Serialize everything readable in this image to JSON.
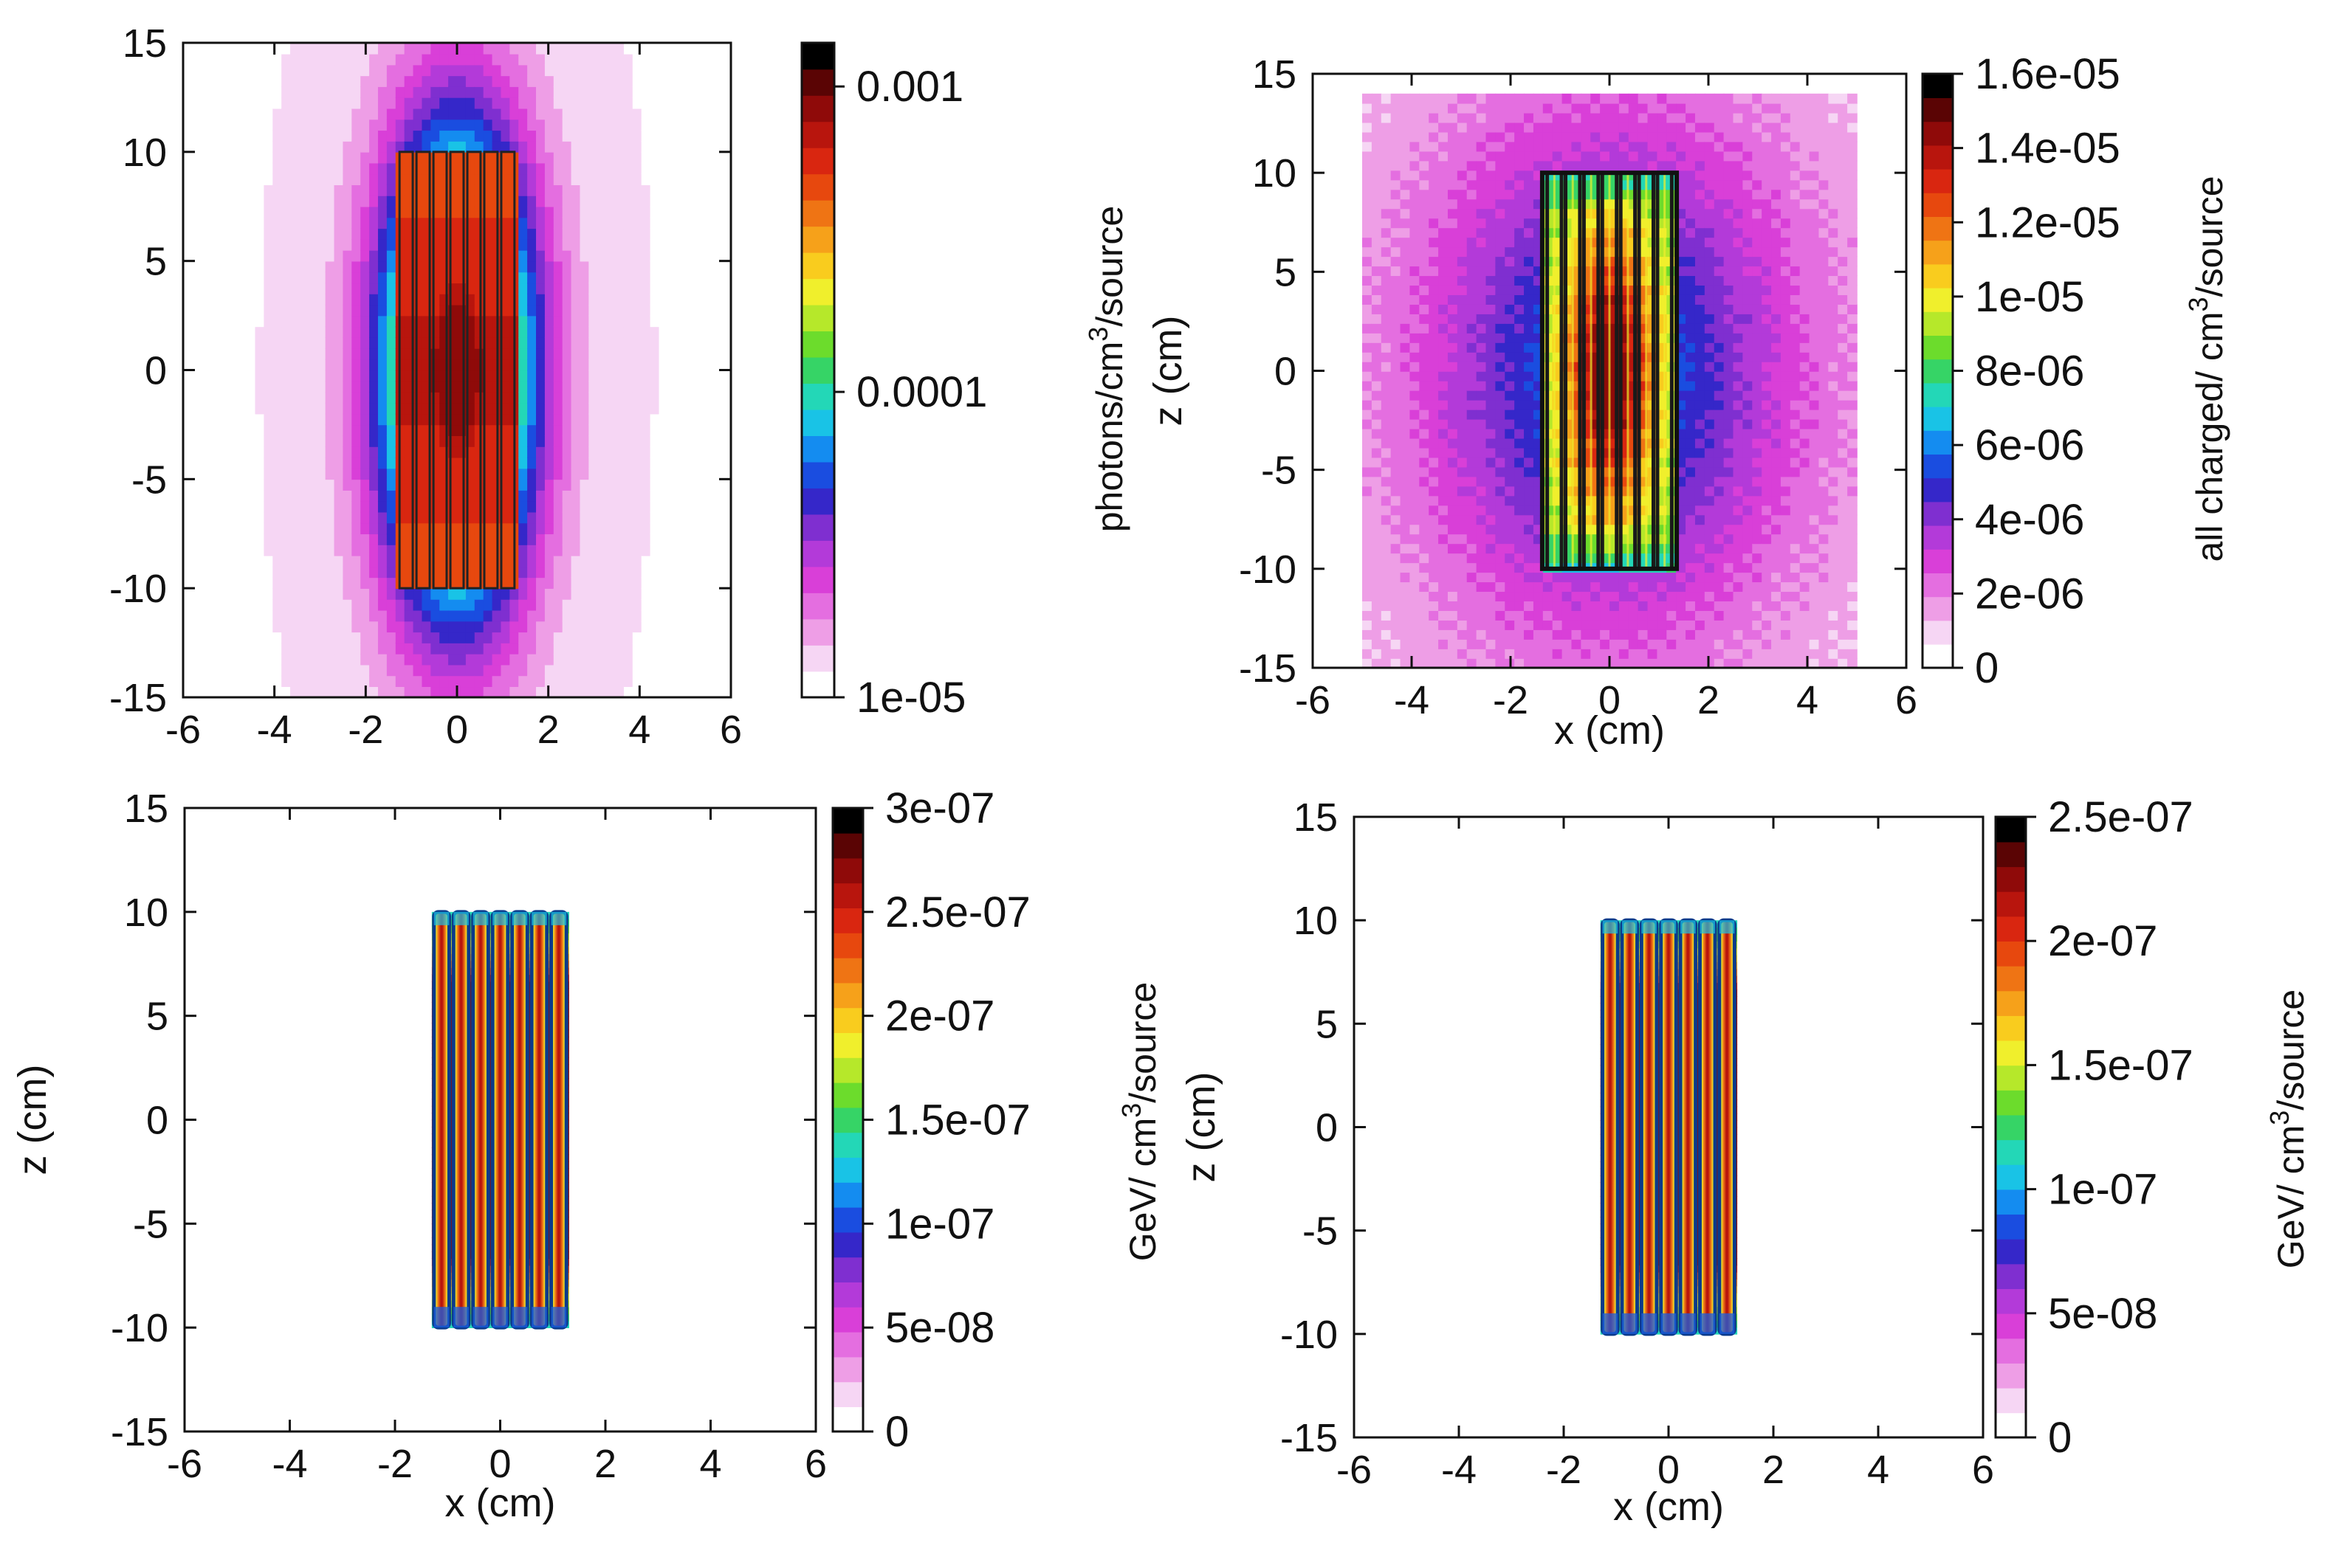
{
  "chart_data": [
    {
      "type": "heatmap",
      "panel": "top-left",
      "title": "",
      "xlabel": "",
      "ylabel": "",
      "xlim": [
        -6,
        6
      ],
      "ylim": [
        -15,
        15
      ],
      "x_ticks": [
        "-6",
        "-4",
        "-2",
        "0",
        "2",
        "4",
        "6"
      ],
      "y_ticks": [
        "15",
        "10",
        "5",
        "0",
        "-5",
        "-10",
        "-15"
      ],
      "field_x_extent": [
        -5,
        5
      ],
      "field_z_extent": [
        -15,
        15
      ],
      "field_model": "broad",
      "colorbar": {
        "scale": "log",
        "range": [
          1e-05,
          0.00139
        ],
        "ticks": [
          0.001,
          0.0001,
          1e-05
        ],
        "tick_labels": [
          "0.001",
          "0.0001",
          "1e-05"
        ],
        "label": "photons/cm³/source",
        "label_parts": [
          "photons/cm",
          "3",
          "/source"
        ]
      },
      "structure": {
        "x_extent": [
          -1.3,
          1.3
        ],
        "z_extent": [
          -10,
          10
        ],
        "strip_count": 7
      },
      "palette": [
        "#ffffff",
        "#f6d6f4",
        "#ee9ee6",
        "#e46ee0",
        "#d93fd8",
        "#b33ad9",
        "#7f2fd0",
        "#3527c9",
        "#1a4de0",
        "#148cf0",
        "#19c3e6",
        "#23d7b7",
        "#36d466",
        "#6cdc2c",
        "#b6e82a",
        "#f0ef2c",
        "#f9cc1e",
        "#f6a11a",
        "#ef7414",
        "#e7480e",
        "#d92610",
        "#b8150d",
        "#8f0a09",
        "#5a0404",
        "#000000"
      ]
    },
    {
      "type": "heatmap",
      "panel": "top-right",
      "title": "",
      "xlabel": "x (cm)",
      "ylabel": "z (cm)",
      "xlim": [
        -6,
        6
      ],
      "ylim": [
        -15,
        15
      ],
      "x_ticks": [
        "-6",
        "-4",
        "-2",
        "0",
        "2",
        "4",
        "6"
      ],
      "y_ticks": [
        "15",
        "10",
        "5",
        "0",
        "-5",
        "-10",
        "-15"
      ],
      "field_x_extent": [
        -5,
        5
      ],
      "field_z_extent": [
        -15,
        14
      ],
      "field_model": "charged",
      "colorbar": {
        "scale": "linear",
        "range": [
          0,
          1.6e-05
        ],
        "ticks": [
          1.6e-05,
          1.4e-05,
          1.2e-05,
          1e-05,
          8e-06,
          6e-06,
          4e-06,
          2e-06,
          0
        ],
        "tick_labels": [
          "1.6e-05",
          "1.4e-05",
          "1.2e-05",
          "1e-05",
          "8e-06",
          "6e-06",
          "4e-06",
          "2e-06",
          "0"
        ],
        "label": "all charged/ cm³/source",
        "label_parts": [
          "all charged/ cm",
          "3",
          "/source"
        ]
      },
      "structure": {
        "x_extent": [
          -1.3,
          1.3
        ],
        "z_extent": [
          -10,
          10
        ],
        "strip_count": 7
      },
      "palette": [
        "#ffffff",
        "#f6d6f4",
        "#ee9ee6",
        "#e46ee0",
        "#d93fd8",
        "#b33ad9",
        "#7f2fd0",
        "#3527c9",
        "#1a4de0",
        "#148cf0",
        "#19c3e6",
        "#23d7b7",
        "#36d466",
        "#6cdc2c",
        "#b6e82a",
        "#f0ef2c",
        "#f9cc1e",
        "#f6a11a",
        "#ef7414",
        "#e7480e",
        "#d92610",
        "#b8150d",
        "#8f0a09",
        "#5a0404",
        "#000000"
      ]
    },
    {
      "type": "heatmap",
      "panel": "bottom-left",
      "title": "",
      "xlabel": "x (cm)",
      "ylabel": "z (cm)",
      "xlim": [
        -6,
        6
      ],
      "ylim": [
        -15,
        15
      ],
      "x_ticks": [
        "-6",
        "-4",
        "-2",
        "0",
        "2",
        "4",
        "6"
      ],
      "y_ticks": [
        "15",
        "10",
        "5",
        "0",
        "-5",
        "-10",
        "-15"
      ],
      "field_x_extent": [
        -1.3,
        1.3
      ],
      "field_z_extent": [
        -10,
        10
      ],
      "field_model": "deposit",
      "colorbar": {
        "scale": "linear",
        "range": [
          0,
          3e-07
        ],
        "ticks": [
          3e-07,
          2.5e-07,
          2e-07,
          1.5e-07,
          1e-07,
          5e-08,
          0
        ],
        "tick_labels": [
          "3e-07",
          "2.5e-07",
          "2e-07",
          "1.5e-07",
          "1e-07",
          "5e-08",
          "0"
        ],
        "label": "GeV/ cm³/source",
        "label_parts": [
          "GeV/ cm",
          "3",
          "/source"
        ]
      },
      "structure": {
        "x_extent": [
          -1.3,
          1.3
        ],
        "z_extent": [
          -10,
          10
        ],
        "strip_count": 7
      },
      "palette": [
        "#ffffff",
        "#f6d6f4",
        "#ee9ee6",
        "#e46ee0",
        "#d93fd8",
        "#b33ad9",
        "#7f2fd0",
        "#3527c9",
        "#1a4de0",
        "#148cf0",
        "#19c3e6",
        "#23d7b7",
        "#36d466",
        "#6cdc2c",
        "#b6e82a",
        "#f0ef2c",
        "#f9cc1e",
        "#f6a11a",
        "#ef7414",
        "#e7480e",
        "#d92610",
        "#b8150d",
        "#8f0a09",
        "#5a0404",
        "#000000"
      ]
    },
    {
      "type": "heatmap",
      "panel": "bottom-right",
      "title": "",
      "xlabel": "x (cm)",
      "ylabel": "z (cm)",
      "xlim": [
        -6,
        6
      ],
      "ylim": [
        -15,
        15
      ],
      "x_ticks": [
        "-6",
        "-4",
        "-2",
        "0",
        "2",
        "4",
        "6"
      ],
      "y_ticks": [
        "15",
        "10",
        "5",
        "0",
        "-5",
        "-10",
        "-15"
      ],
      "field_x_extent": [
        -1.3,
        1.3
      ],
      "field_z_extent": [
        -10,
        10
      ],
      "field_model": "deposit",
      "colorbar": {
        "scale": "linear",
        "range": [
          0,
          2.5e-07
        ],
        "ticks": [
          2.5e-07,
          2e-07,
          1.5e-07,
          1e-07,
          5e-08,
          0
        ],
        "tick_labels": [
          "2.5e-07",
          "2e-07",
          "1.5e-07",
          "1e-07",
          "5e-08",
          "0"
        ],
        "label": "GeV/ cm³/source",
        "label_parts": [
          "GeV/ cm",
          "3",
          "/source"
        ]
      },
      "structure": {
        "x_extent": [
          -1.3,
          1.3
        ],
        "z_extent": [
          -10,
          10
        ],
        "strip_count": 7
      },
      "palette": [
        "#ffffff",
        "#f6d6f4",
        "#ee9ee6",
        "#e46ee0",
        "#d93fd8",
        "#b33ad9",
        "#7f2fd0",
        "#3527c9",
        "#1a4de0",
        "#148cf0",
        "#19c3e6",
        "#23d7b7",
        "#36d466",
        "#6cdc2c",
        "#b6e82a",
        "#f0ef2c",
        "#f9cc1e",
        "#f6a11a",
        "#ef7414",
        "#e7480e",
        "#d92610",
        "#b8150d",
        "#8f0a09",
        "#5a0404",
        "#000000"
      ]
    }
  ]
}
